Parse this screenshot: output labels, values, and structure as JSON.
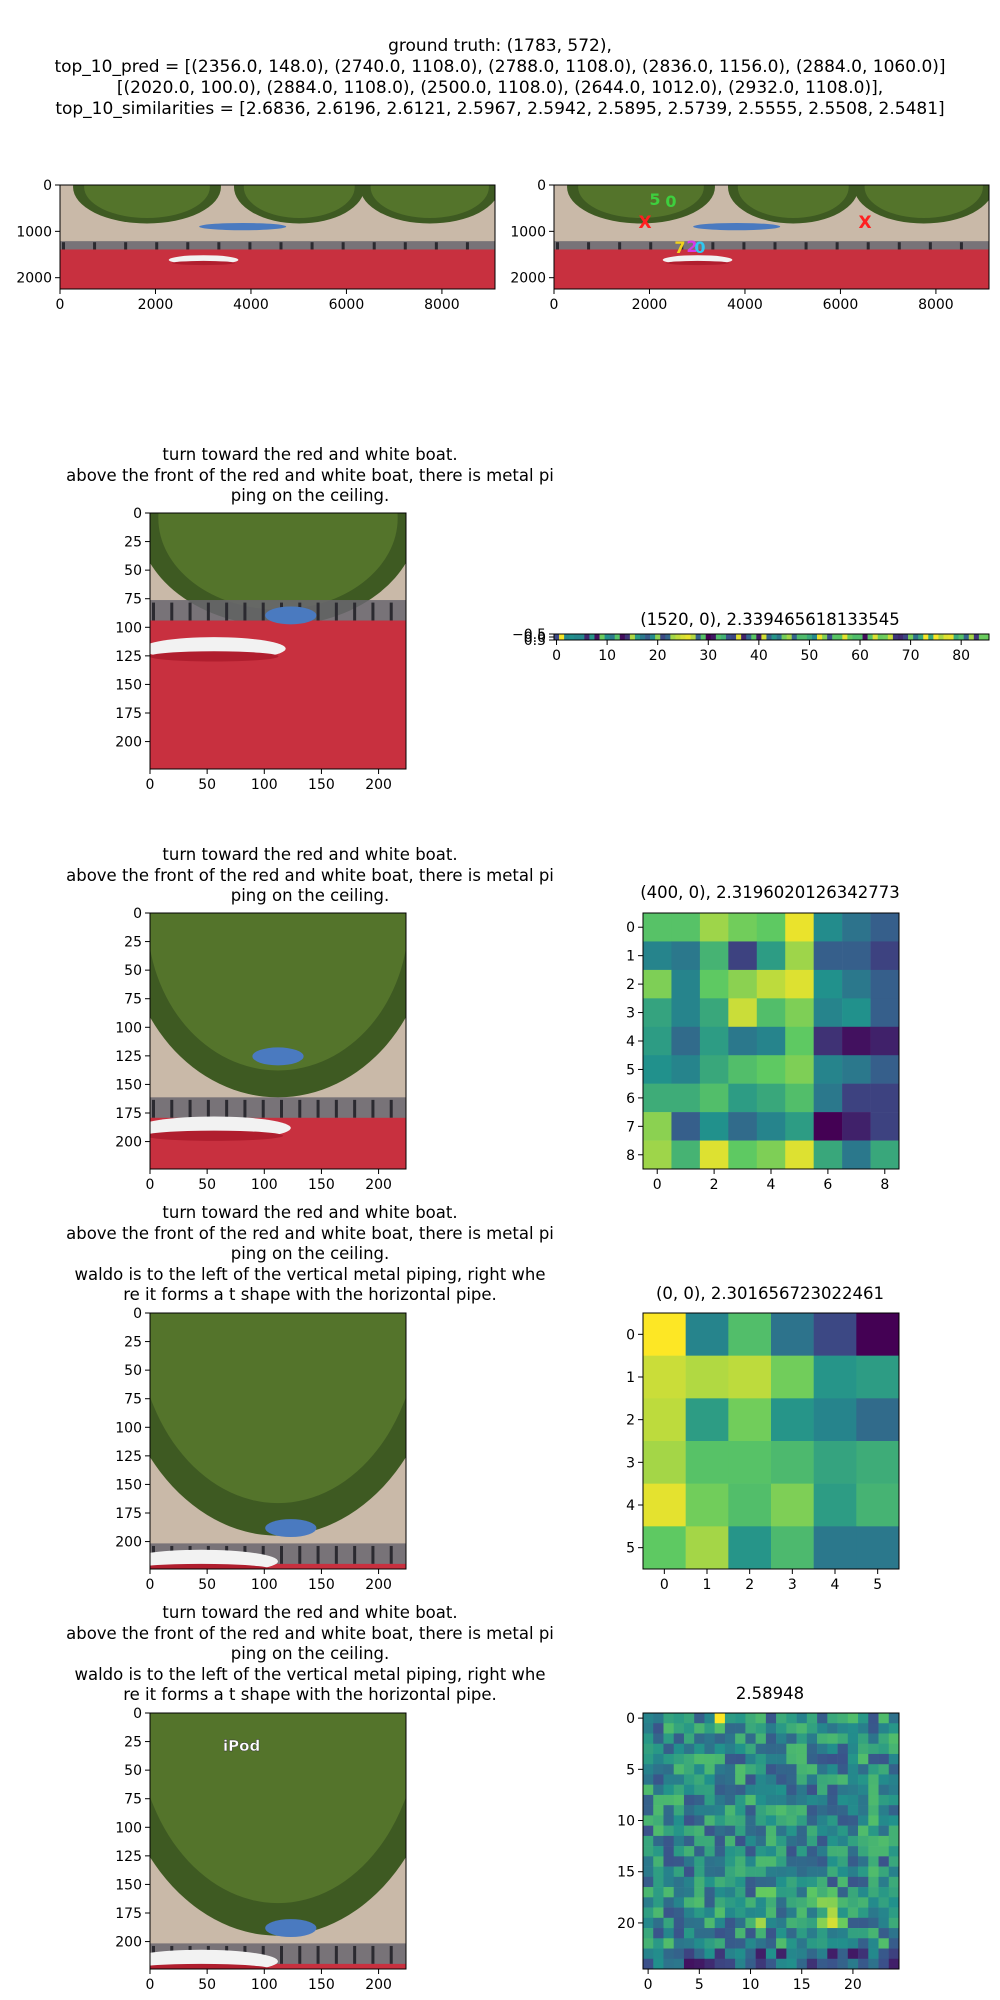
{
  "header": {
    "line1": "ground truth: (1783, 572),",
    "line2": "top_10_pred = [(2356.0, 148.0), (2740.0, 1108.0), (2788.0, 1108.0), (2836.0, 1156.0), (2884.0, 1060.0)]",
    "line3": "[(2020.0, 100.0), (2884.0, 1108.0), (2500.0, 1108.0), (2644.0, 1012.0), (2932.0, 1108.0)],",
    "line4": "top_10_similarities = [2.6836, 2.6196, 2.6121, 2.5967, 2.5942, 2.5895, 2.5739, 2.5555, 2.5508, 2.5481]"
  },
  "panorama": {
    "x_ticks": [
      "0",
      "2000",
      "4000",
      "6000",
      "8000"
    ],
    "y_ticks": [
      "0",
      "1000",
      "2000"
    ],
    "marker_labels": [
      "5",
      "0",
      "7",
      "2",
      "0"
    ],
    "marker_x": "X"
  },
  "instructions": {
    "row2": "turn toward the red and white boat.\nabove the front of the red and white boat, there is metal pi\nping on the ceiling.",
    "row3": "turn toward the red and white boat.\nabove the front of the red and white boat, there is metal pi\nping on the ceiling.",
    "row4": "turn toward the red and white boat.\nabove the front of the red and white boat, there is metal pi\nping on the ceiling.\nwaldo is to the left of the vertical metal piping, right whe\nre it forms a t shape with the horizontal pipe.",
    "row5": "turn toward the red and white boat.\nabove the front of the red and white boat, there is metal pi\nping on the ceiling.\nwaldo is to the left of the vertical metal piping, right whe\nre it forms a t shape with the horizontal pipe."
  },
  "crop_axes": {
    "x_ticks": [
      "0",
      "50",
      "100",
      "150",
      "200"
    ],
    "y_ticks": [
      "0",
      "25",
      "50",
      "75",
      "100",
      "125",
      "150",
      "175",
      "200"
    ]
  },
  "ipod_label": "iPod",
  "chart_data": [
    {
      "type": "heatmap",
      "title": "(1520, 0), 2.339465618133545",
      "rows": 1,
      "cols": 86,
      "x_ticks": [
        "0",
        "10",
        "20",
        "30",
        "40",
        "50",
        "60",
        "70",
        "80"
      ],
      "y_ticks": [
        "−0.5",
        "0.0",
        "0.5"
      ]
    },
    {
      "type": "heatmap",
      "title": "(400, 0), 2.3196020126342773",
      "x_ticks": [
        "0",
        "2",
        "4",
        "6",
        "8"
      ],
      "y_ticks": [
        "0",
        "1",
        "2",
        "3",
        "4",
        "5",
        "6",
        "7",
        "8"
      ],
      "values": [
        [
          0.72,
          0.72,
          0.85,
          0.78,
          0.75,
          0.97,
          0.48,
          0.38,
          0.3
        ],
        [
          0.45,
          0.4,
          0.65,
          0.2,
          0.55,
          0.85,
          0.3,
          0.3,
          0.2
        ],
        [
          0.8,
          0.45,
          0.75,
          0.82,
          0.9,
          0.95,
          0.5,
          0.4,
          0.3
        ],
        [
          0.58,
          0.45,
          0.6,
          0.92,
          0.7,
          0.8,
          0.45,
          0.5,
          0.3
        ],
        [
          0.55,
          0.35,
          0.55,
          0.4,
          0.45,
          0.75,
          0.15,
          0.05,
          0.1
        ],
        [
          0.5,
          0.45,
          0.6,
          0.7,
          0.75,
          0.8,
          0.45,
          0.4,
          0.3
        ],
        [
          0.62,
          0.62,
          0.7,
          0.55,
          0.6,
          0.7,
          0.4,
          0.2,
          0.2
        ],
        [
          0.82,
          0.3,
          0.5,
          0.35,
          0.45,
          0.55,
          0.0,
          0.1,
          0.2
        ],
        [
          0.85,
          0.65,
          0.95,
          0.75,
          0.8,
          0.95,
          0.6,
          0.4,
          0.6
        ]
      ]
    },
    {
      "type": "heatmap",
      "title": "(0, 0), 2.301656723022461",
      "x_ticks": [
        "0",
        "1",
        "2",
        "3",
        "4",
        "5"
      ],
      "y_ticks": [
        "0",
        "1",
        "2",
        "3",
        "4",
        "5"
      ],
      "values": [
        [
          1.0,
          0.45,
          0.7,
          0.38,
          0.22,
          0.0
        ],
        [
          0.92,
          0.88,
          0.9,
          0.78,
          0.52,
          0.55
        ],
        [
          0.9,
          0.55,
          0.78,
          0.52,
          0.45,
          0.35
        ],
        [
          0.86,
          0.72,
          0.72,
          0.68,
          0.58,
          0.62
        ],
        [
          0.96,
          0.78,
          0.7,
          0.8,
          0.55,
          0.65
        ],
        [
          0.75,
          0.86,
          0.52,
          0.68,
          0.4,
          0.4
        ]
      ]
    },
    {
      "type": "heatmap",
      "title": "2.58948",
      "rows": 25,
      "cols": 25,
      "x_ticks": [
        "0",
        "5",
        "10",
        "15",
        "20"
      ],
      "y_ticks": [
        "0",
        "5",
        "10",
        "15",
        "20"
      ]
    }
  ]
}
